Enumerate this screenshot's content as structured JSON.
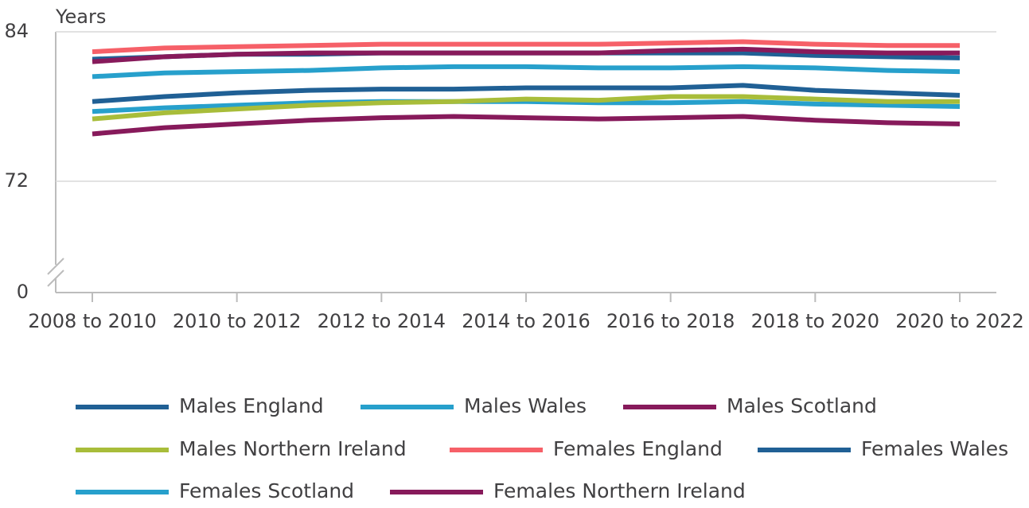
{
  "chart_data": {
    "type": "line",
    "y_label": "Years",
    "categories": [
      "2008 to 2010",
      null,
      "2010 to 2012",
      null,
      "2012 to 2014",
      null,
      "2014 to 2016",
      null,
      "2016 to 2018",
      null,
      "2018 to 2020",
      null,
      "2020 to 2022"
    ],
    "ylim": [
      0,
      84
    ],
    "yticks": [
      0,
      72,
      84
    ],
    "axis_break": [
      0,
      72
    ],
    "grid": true,
    "series": [
      {
        "name": "Males England",
        "color": "#206095",
        "values": [
          78.4,
          78.8,
          79.1,
          79.3,
          79.4,
          79.4,
          79.5,
          79.5,
          79.5,
          79.7,
          79.3,
          79.1,
          78.9
        ]
      },
      {
        "name": "Males Wales",
        "color": "#27a0cc",
        "values": [
          77.6,
          77.9,
          78.1,
          78.3,
          78.4,
          78.4,
          78.4,
          78.3,
          78.3,
          78.4,
          78.2,
          78.1,
          78.0
        ]
      },
      {
        "name": "Males Scotland",
        "color": "#871a5b",
        "values": [
          75.8,
          76.3,
          76.6,
          76.9,
          77.1,
          77.2,
          77.1,
          77.0,
          77.1,
          77.2,
          76.9,
          76.7,
          76.6
        ]
      },
      {
        "name": "Males Northern Ireland",
        "color": "#a8bd3a",
        "values": [
          77.0,
          77.5,
          77.8,
          78.1,
          78.3,
          78.4,
          78.6,
          78.5,
          78.8,
          78.8,
          78.6,
          78.4,
          78.4
        ]
      },
      {
        "name": "Females England",
        "color": "#f66068",
        "values": [
          82.4,
          82.7,
          82.8,
          82.9,
          83.0,
          83.0,
          83.0,
          83.0,
          83.1,
          83.2,
          83.0,
          82.9,
          82.9
        ]
      },
      {
        "name": "Females Wales",
        "color": "#206095",
        "values": [
          81.8,
          82.0,
          82.2,
          82.2,
          82.3,
          82.3,
          82.3,
          82.3,
          82.3,
          82.3,
          82.1,
          82.0,
          81.9
        ]
      },
      {
        "name": "Females Scotland",
        "color": "#27a0cc",
        "values": [
          80.4,
          80.7,
          80.8,
          80.9,
          81.1,
          81.2,
          81.2,
          81.1,
          81.1,
          81.2,
          81.1,
          80.9,
          80.8
        ]
      },
      {
        "name": "Females Northern Ireland",
        "color": "#871a5b",
        "values": [
          81.6,
          82.0,
          82.2,
          82.3,
          82.3,
          82.3,
          82.3,
          82.3,
          82.5,
          82.6,
          82.4,
          82.3,
          82.3
        ]
      }
    ]
  }
}
